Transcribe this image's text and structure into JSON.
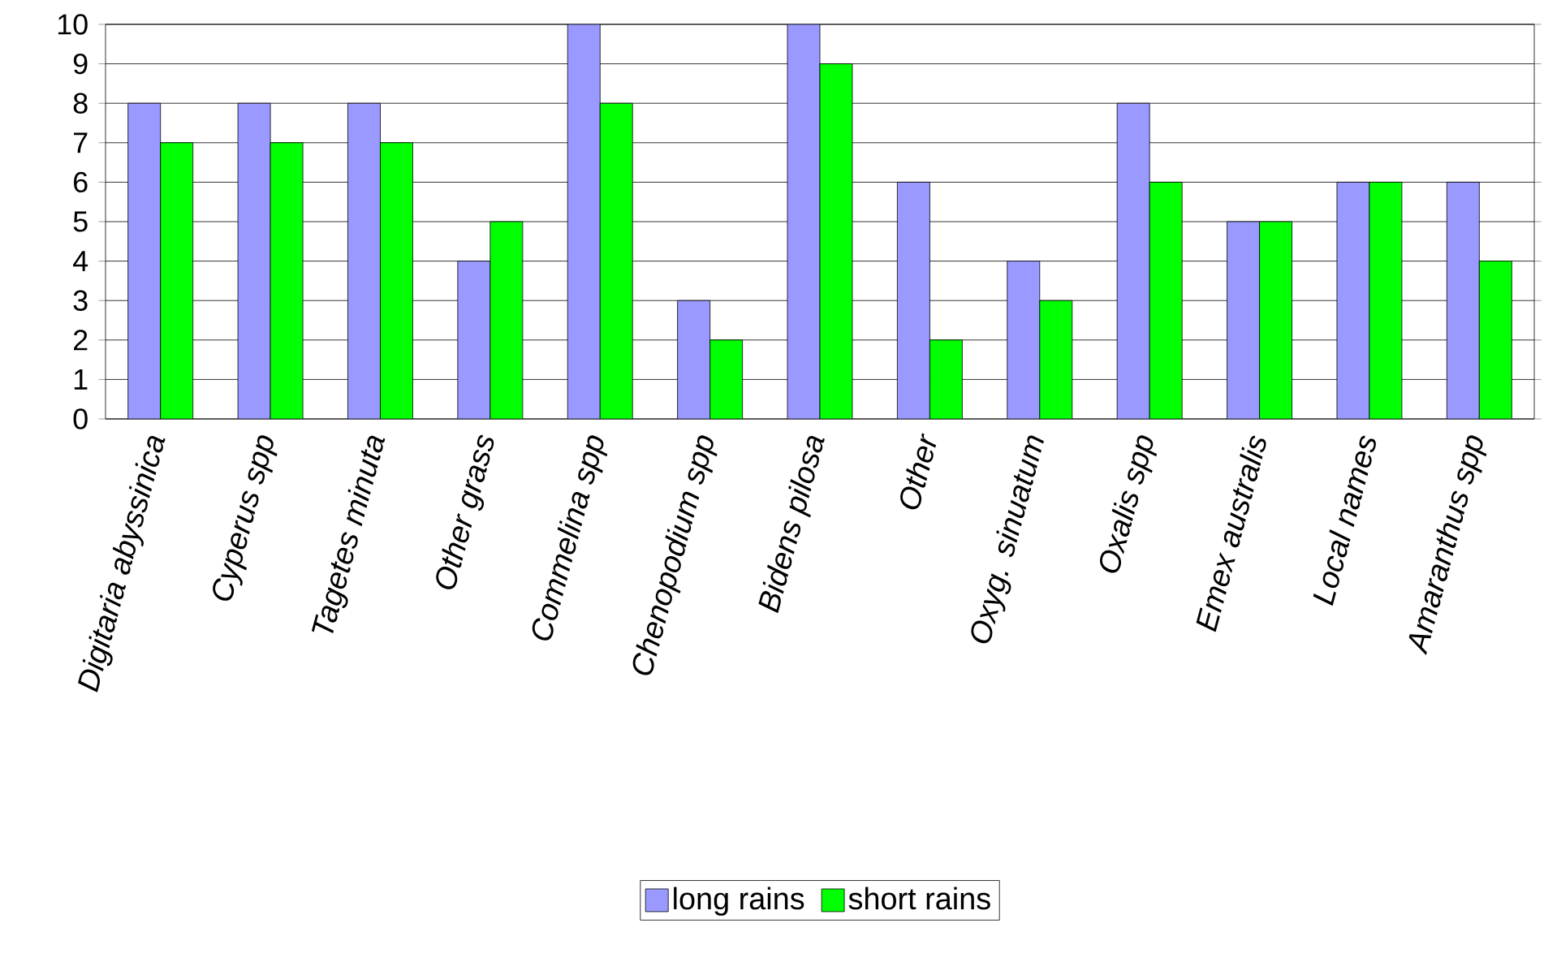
{
  "chart_data": {
    "type": "bar",
    "categories": [
      "Digitaria abyssinica",
      "Cyperus spp",
      "Tagetes minuta",
      "Other grass",
      "Commelina spp",
      "Chenopodium spp",
      "Bidens pilosa",
      "Other",
      "Oxyg. sinuatum",
      "Oxalis spp",
      "Emex australis",
      "Local names",
      "Amaranthus spp"
    ],
    "series": [
      {
        "name": "long rains",
        "color": "#9999ff",
        "values": [
          8,
          8,
          8,
          4,
          10,
          3,
          10,
          6,
          4,
          8,
          5,
          6,
          6
        ]
      },
      {
        "name": "short rains",
        "color": "#00ff00",
        "values": [
          7,
          7,
          7,
          5,
          8,
          2,
          9,
          2,
          3,
          6,
          5,
          6,
          4
        ]
      }
    ],
    "ylim": [
      0,
      10
    ],
    "yticks": [
      0,
      1,
      2,
      3,
      4,
      5,
      6,
      7,
      8,
      9,
      10
    ],
    "grid": "y",
    "legend": "bottom"
  }
}
